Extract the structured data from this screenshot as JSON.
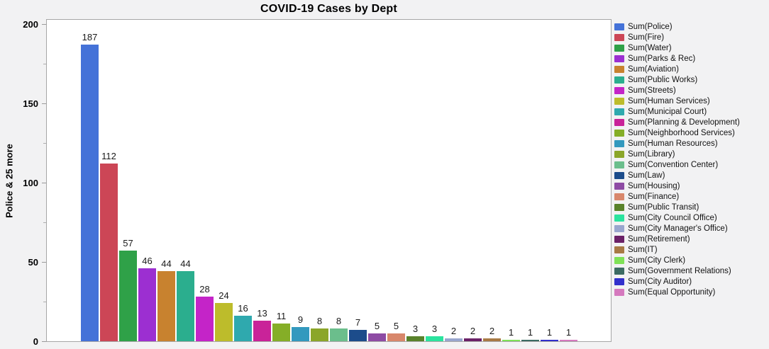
{
  "title": "COVID-19 Cases by Dept",
  "ylabel": "Police & 25 more",
  "chart_data": {
    "type": "bar",
    "title": "COVID-19 Cases by Dept",
    "xlabel": "",
    "ylabel": "Police & 25 more",
    "ylim": [
      0,
      203
    ],
    "yticks": [
      0,
      50,
      100,
      150,
      200
    ],
    "minor_ticks": [
      25,
      75,
      125,
      175
    ],
    "grid": false,
    "legend_position": "right",
    "bar_labels_shown": true,
    "plot_background": "#ffffff",
    "page_background": "#f2f2f3",
    "border_color": "#a6a6a6",
    "series": [
      {
        "name": "Sum(Police)",
        "department": "Police",
        "value": 187,
        "color": "#4472d8"
      },
      {
        "name": "Sum(Fire)",
        "department": "Fire",
        "value": 112,
        "color": "#cc4656"
      },
      {
        "name": "Sum(Water)",
        "department": "Water",
        "value": 57,
        "color": "#2fa148"
      },
      {
        "name": "Sum(Parks & Rec)",
        "department": "Parks & Rec",
        "value": 46,
        "color": "#9c2fd1"
      },
      {
        "name": "Sum(Aviation)",
        "department": "Aviation",
        "value": 44,
        "color": "#c8822f"
      },
      {
        "name": "Sum(Public Works)",
        "department": "Public Works",
        "value": 44,
        "color": "#2bae8e"
      },
      {
        "name": "Sum(Streets)",
        "department": "Streets",
        "value": 28,
        "color": "#c424c8"
      },
      {
        "name": "Sum(Human Services)",
        "department": "Human Services",
        "value": 24,
        "color": "#bdbc2b"
      },
      {
        "name": "Sum(Municipal Court)",
        "department": "Municipal Court",
        "value": 16,
        "color": "#2fa9ae"
      },
      {
        "name": "Sum(Planning & Development)",
        "department": "Planning & Development",
        "value": 13,
        "color": "#c92399"
      },
      {
        "name": "Sum(Neighborhood Services)",
        "department": "Neighborhood Services",
        "value": 11,
        "color": "#85ae27"
      },
      {
        "name": "Sum(Human Resources)",
        "department": "Human Resources",
        "value": 9,
        "color": "#3399be"
      },
      {
        "name": "Sum(Library)",
        "department": "Library",
        "value": 8,
        "color": "#8ba629"
      },
      {
        "name": "Sum(Convention Center)",
        "department": "Convention Center",
        "value": 8,
        "color": "#6bbe8c"
      },
      {
        "name": "Sum(Law)",
        "department": "Law",
        "value": 7,
        "color": "#1c4c8b"
      },
      {
        "name": "Sum(Housing)",
        "department": "Housing",
        "value": 5,
        "color": "#8e4ba4"
      },
      {
        "name": "Sum(Finance)",
        "department": "Finance",
        "value": 5,
        "color": "#d8876b"
      },
      {
        "name": "Sum(Public Transit)",
        "department": "Public Transit",
        "value": 3,
        "color": "#59822b"
      },
      {
        "name": "Sum(City Council Office)",
        "department": "City Council Office",
        "value": 3,
        "color": "#2be39e"
      },
      {
        "name": "Sum(City Manager's Office)",
        "department": "City Manager's Office",
        "value": 2,
        "color": "#99a6ce"
      },
      {
        "name": "Sum(Retirement)",
        "department": "Retirement",
        "value": 2,
        "color": "#6b2167"
      },
      {
        "name": "Sum(IT)",
        "department": "IT",
        "value": 2,
        "color": "#a87a45"
      },
      {
        "name": "Sum(City Clerk)",
        "department": "City Clerk",
        "value": 1,
        "color": "#7fe257"
      },
      {
        "name": "Sum(Government Relations)",
        "department": "Government Relations",
        "value": 1,
        "color": "#3c6b63"
      },
      {
        "name": "Sum(City Auditor)",
        "department": "City Auditor",
        "value": 1,
        "color": "#3230cc"
      },
      {
        "name": "Sum(Equal Opportunity)",
        "department": "Equal Opportunity",
        "value": 1,
        "color": "#d579be"
      }
    ]
  }
}
